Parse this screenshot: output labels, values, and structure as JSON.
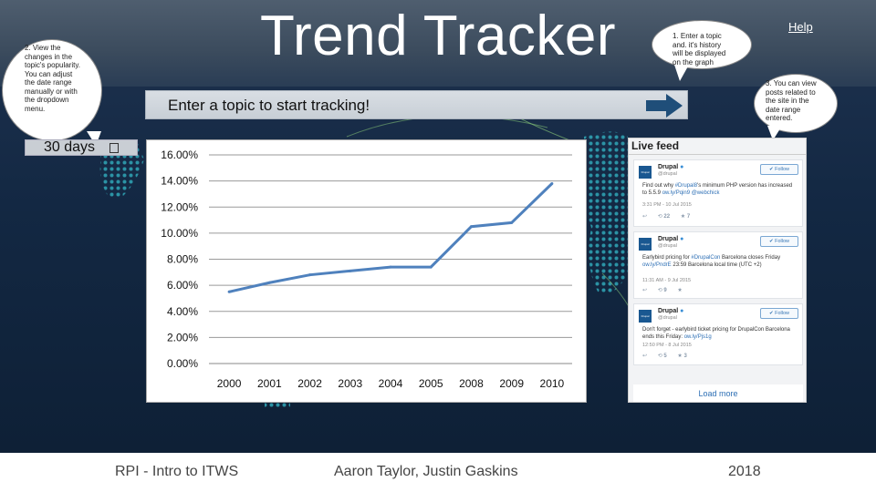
{
  "header": {
    "title": "Trend Tracker",
    "help_label": "Help"
  },
  "callouts": {
    "view_changes": [
      "2. View the",
      "changes in the",
      "topic's popularity.",
      "You can adjust",
      "the date range",
      "manually or with",
      "the dropdown",
      "menu."
    ],
    "enter_topic": [
      "1. Enter a topic",
      "and. it's history",
      "will be displayed",
      "on the graph"
    ],
    "view_posts": [
      "3. You can view",
      "posts related to",
      "the site in the",
      "date range",
      "entered."
    ]
  },
  "search": {
    "placeholder": "Enter a topic to start tracking!"
  },
  "date_range": {
    "selected": "30 days",
    "caret_glyph": ""
  },
  "chart_data": {
    "type": "line",
    "categories": [
      "2000",
      "2001",
      "2002",
      "2003",
      "2004",
      "2005",
      "2008",
      "2009",
      "2010"
    ],
    "values": [
      5.5,
      6.2,
      6.8,
      7.1,
      7.4,
      7.4,
      10.5,
      10.8,
      13.8
    ],
    "y_ticks": [
      "0.00%",
      "2.00%",
      "4.00%",
      "6.00%",
      "8.00%",
      "10.00%",
      "12.00%",
      "14.00%",
      "16.00%"
    ],
    "ylim": [
      0,
      16
    ],
    "grid": true,
    "line_color": "#4f81bd"
  },
  "feed": {
    "title": "Live feed",
    "tweets": [
      {
        "name": "Drupal",
        "handle": "@drupal",
        "avatar_text": "Drupal",
        "follow": "Follow",
        "text_pre": "Find out why ",
        "text_link": "#Drupal8",
        "text_post": "'s minimum PHP version has increased to 5.5.9 ",
        "link2": "ow.ly/Pqin9 @webchick",
        "time": "3:31 PM - 10 Jul 2015",
        "reply": "↩",
        "retweets": "22",
        "favs": "7"
      },
      {
        "name": "Drupal",
        "handle": "@drupal",
        "avatar_text": "Drupal",
        "follow": "Follow",
        "text_pre": "Earlybird pricing for ",
        "text_link": "#DrupalCon",
        "text_post": " Barcelona closes Friday ",
        "link2": "ow.ly/PndrE",
        "text_tail": " 23:59 Barcelona local time (UTC +2)",
        "time": "11:31 AM - 9 Jul 2015",
        "reply": "↩",
        "retweets": "9",
        "favs": ""
      },
      {
        "name": "Drupal",
        "handle": "@drupal",
        "avatar_text": "Drupal",
        "follow": "Follow",
        "text_pre": "Don't forget - earlybird ticket pricing for DrupalCon Barcelona ends this Friday: ",
        "text_link": "ow.ly/Pjs1g",
        "text_post": "",
        "time": "12:50 PM - 8 Jul 2015",
        "reply": "↩",
        "retweets": "5",
        "favs": "3"
      }
    ],
    "load_more": "Load more"
  },
  "footer": {
    "left": "RPI - Intro to ITWS",
    "center": "Aaron Taylor, Justin Gaskins",
    "right": "2018"
  },
  "colors": {
    "background": "#132843",
    "accent_teal": "#3fb7c7",
    "arrow": "#1f4e79"
  }
}
